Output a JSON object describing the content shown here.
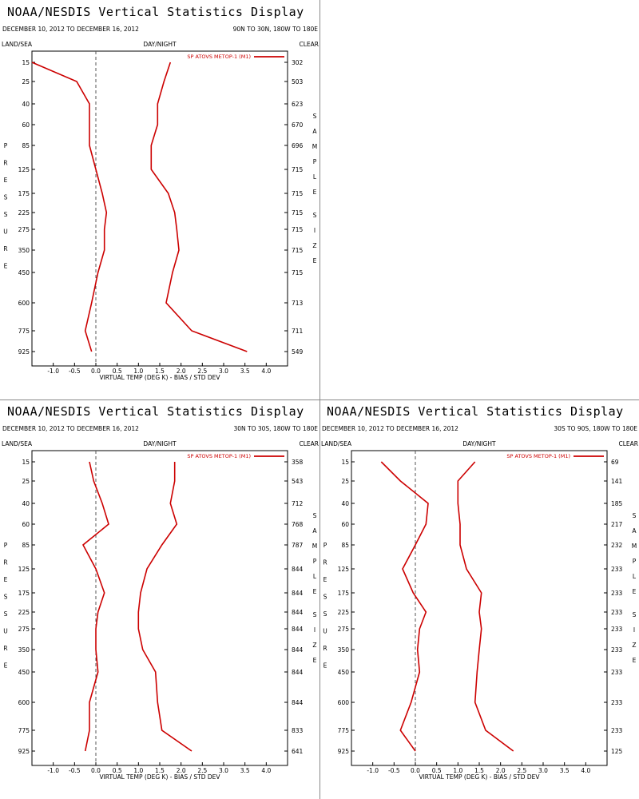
{
  "panels": [
    {
      "title": "NOAA/NESDIS Vertical Statistics Display",
      "date_range": "DECEMBER 10, 2012 TO DECEMBER 16, 2012",
      "region": "90N TO 30N, 180W TO 180E",
      "land_sea": "LAND/SEA",
      "day_night": "DAY/NIGHT",
      "clear": "CLEAR",
      "left_axis_label": "PRESSURE",
      "right_axis_label": "SAMPLE SIZE",
      "xlabel": "VIRTUAL TEMP (DEG K) - BIAS / STD DEV",
      "legend": "SP ATOVS METOP-1 (M1)",
      "sample_sizes": [
        "302",
        "503",
        "623",
        "670",
        "696",
        "715",
        "715",
        "715",
        "715",
        "715",
        "715",
        "713",
        "711",
        "549"
      ]
    },
    {
      "title": "NOAA/NESDIS Vertical Statistics Display",
      "date_range": "DECEMBER 10, 2012 TO DECEMBER 16, 2012",
      "region": "30N TO 30S, 180W TO 180E",
      "land_sea": "LAND/SEA",
      "day_night": "DAY/NIGHT",
      "clear": "CLEAR",
      "left_axis_label": "PRESSURE",
      "right_axis_label": "SAMPLE SIZE",
      "xlabel": "VIRTUAL TEMP (DEG K) - BIAS / STD DEV",
      "legend": "SP ATOVS METOP-1 (M1)",
      "sample_sizes": [
        "358",
        "543",
        "712",
        "768",
        "787",
        "844",
        "844",
        "844",
        "844",
        "844",
        "844",
        "844",
        "833",
        "641"
      ]
    },
    {
      "title": "NOAA/NESDIS Vertical Statistics Display",
      "date_range": "DECEMBER 10, 2012 TO DECEMBER 16, 2012",
      "region": "30S TO 90S, 180W TO 180E",
      "land_sea": "LAND/SEA",
      "day_night": "DAY/NIGHT",
      "clear": "CLEAR",
      "left_axis_label": "PRESSURE",
      "right_axis_label": "SAMPLE SIZE",
      "xlabel": "VIRTUAL TEMP (DEG K) - BIAS / STD DEV",
      "legend": "SP ATOVS METOP-1 (M1)",
      "sample_sizes": [
        "69",
        "141",
        "185",
        "217",
        "232",
        "233",
        "233",
        "233",
        "233",
        "233",
        "233",
        "233",
        "233",
        "125"
      ]
    }
  ],
  "chart_data": [
    {
      "type": "line",
      "title": "NOAA/NESDIS Vertical Statistics Display",
      "subtitle": "DECEMBER 10, 2012 TO DECEMBER 16, 2012 — 90N TO 30N, 180W TO 180E",
      "xlabel": "VIRTUAL TEMP (DEG K) - BIAS / STD DEV",
      "ylabel": "PRESSURE",
      "xlim": [
        -1.5,
        4.5
      ],
      "x_ticks": [
        "-1.0",
        "-0.5",
        "0.0",
        "0.5",
        "1.0",
        "1.5",
        "2.0",
        "2.5",
        "3.0",
        "3.5",
        "4.0"
      ],
      "pressure_levels": [
        15,
        25,
        40,
        60,
        85,
        125,
        175,
        225,
        275,
        350,
        450,
        600,
        775,
        925
      ],
      "series": [
        {
          "name": "SP ATOVS METOP-1 (M1)",
          "kind": "bias",
          "color": "#cc0000",
          "values": [
            -1.5,
            -0.45,
            -0.15,
            -0.15,
            -0.15,
            0.0,
            0.15,
            0.25,
            0.2,
            0.2,
            0.05,
            -0.1,
            -0.25,
            -0.1
          ]
        },
        {
          "kind": "std_dev",
          "color": "#cc0000",
          "values": [
            1.75,
            1.6,
            1.45,
            1.45,
            1.3,
            1.3,
            1.7,
            1.85,
            1.9,
            1.95,
            1.8,
            1.65,
            2.25,
            3.55
          ]
        }
      ]
    },
    {
      "type": "line",
      "title": "NOAA/NESDIS Vertical Statistics Display",
      "subtitle": "DECEMBER 10, 2012 TO DECEMBER 16, 2012 — 30N TO 30S, 180W TO 180E",
      "xlabel": "VIRTUAL TEMP (DEG K) - BIAS / STD DEV",
      "ylabel": "PRESSURE",
      "xlim": [
        -1.5,
        4.5
      ],
      "x_ticks": [
        "-1.0",
        "-0.5",
        "0.0",
        "0.5",
        "1.0",
        "1.5",
        "2.0",
        "2.5",
        "3.0",
        "3.5",
        "4.0"
      ],
      "pressure_levels": [
        15,
        25,
        40,
        60,
        85,
        125,
        175,
        225,
        275,
        350,
        450,
        600,
        775,
        925
      ],
      "series": [
        {
          "name": "SP ATOVS METOP-1 (M1)",
          "kind": "bias",
          "color": "#cc0000",
          "values": [
            -0.15,
            -0.05,
            0.15,
            0.3,
            -0.3,
            0.0,
            0.2,
            0.05,
            0.0,
            0.0,
            0.05,
            -0.15,
            -0.15,
            -0.25
          ]
        },
        {
          "kind": "std_dev",
          "color": "#cc0000",
          "values": [
            1.85,
            1.85,
            1.75,
            1.9,
            1.55,
            1.2,
            1.05,
            1.0,
            1.0,
            1.1,
            1.4,
            1.45,
            1.55,
            2.25
          ]
        }
      ]
    },
    {
      "type": "line",
      "title": "NOAA/NESDIS Vertical Statistics Display",
      "subtitle": "DECEMBER 10, 2012 TO DECEMBER 16, 2012 — 30S TO 90S, 180W TO 180E",
      "xlabel": "VIRTUAL TEMP (DEG K) - BIAS / STD DEV",
      "ylabel": "PRESSURE",
      "xlim": [
        -1.5,
        4.5
      ],
      "x_ticks": [
        "-1.0",
        "-0.5",
        "0.0",
        "0.5",
        "1.0",
        "1.5",
        "2.0",
        "2.5",
        "3.0",
        "3.5",
        "4.0"
      ],
      "pressure_levels": [
        15,
        25,
        40,
        60,
        85,
        125,
        175,
        225,
        275,
        350,
        450,
        600,
        775,
        925
      ],
      "series": [
        {
          "name": "SP ATOVS METOP-1 (M1)",
          "kind": "bias",
          "color": "#cc0000",
          "values": [
            -0.8,
            -0.35,
            0.3,
            0.25,
            0.0,
            -0.3,
            -0.05,
            0.25,
            0.1,
            0.05,
            0.1,
            -0.1,
            -0.35,
            0.0
          ]
        },
        {
          "kind": "std_dev",
          "color": "#cc0000",
          "values": [
            1.4,
            1.0,
            1.0,
            1.05,
            1.05,
            1.2,
            1.55,
            1.5,
            1.55,
            1.5,
            1.45,
            1.4,
            1.65,
            2.3
          ]
        }
      ]
    }
  ]
}
